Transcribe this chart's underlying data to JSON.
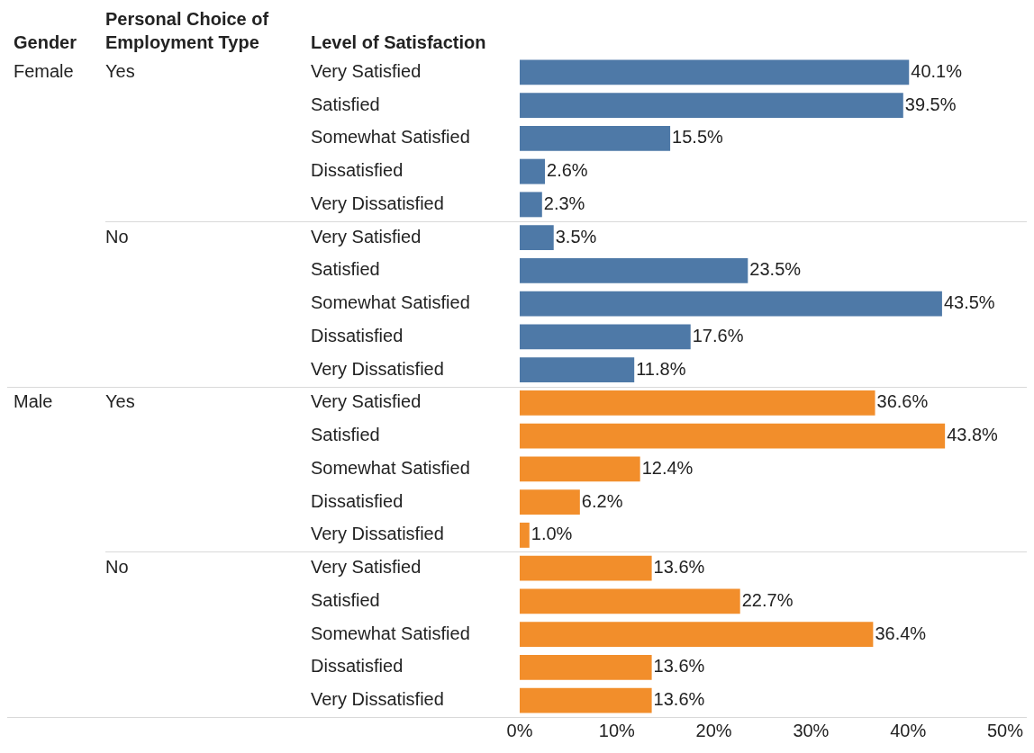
{
  "chart_data": {
    "type": "bar",
    "orientation": "horizontal",
    "legend_title": "Gender",
    "ylabel": "Level of Satisfaction",
    "annotations": [
      "Personal Choice of Employment Type",
      "Female",
      "Yes",
      "No",
      "Male",
      "Yes",
      "No"
    ],
    "grid": "y",
    "categories": [
      "Very Satisfied",
      "Satisfied",
      "Somewhat Satisfied",
      "Dissatisfied",
      "Very Dissatisfied",
      "Very Satisfied",
      "Satisfied",
      "Somewhat Satisfied",
      "Dissatisfied",
      "Very Dissatisfied",
      "Very Satisfied",
      "Satisfied",
      "Somewhat Satisfied",
      "Dissatisfied",
      "Very Dissatisfied",
      "Very Satisfied",
      "Satisfied",
      "Somewhat Satisfied",
      "Dissatisfied",
      "Very Dissatisfied"
    ],
    "series": [
      {
        "color": "#4e79a7",
        "values": [
          40.1,
          39.5,
          15.5,
          2.6,
          2.3,
          3.5,
          23.5,
          43.5,
          17.6,
          11.8,
          null,
          null,
          null,
          null,
          null,
          null,
          null,
          null,
          null,
          null
        ],
        "value_labels": [
          "40.1%",
          "39.5%",
          "15.5%",
          "2.6%",
          "2.3%",
          "3.5%",
          "23.5%",
          "43.5%",
          "17.6%",
          "11.8%",
          null,
          null,
          null,
          null,
          null,
          null,
          null,
          null,
          null,
          null
        ]
      },
      {
        "color": "#f28e2b",
        "values": [
          null,
          null,
          null,
          null,
          null,
          null,
          null,
          null,
          null,
          null,
          36.6,
          43.8,
          12.4,
          6.2,
          1.0,
          13.6,
          22.7,
          36.4,
          13.6,
          13.6
        ],
        "value_labels": [
          null,
          null,
          null,
          null,
          null,
          null,
          null,
          null,
          null,
          null,
          "36.6%",
          "43.8%",
          "12.4%",
          "6.2%",
          "1.0%",
          "13.6%",
          "22.7%",
          "36.4%",
          "13.6%",
          "13.6%"
        ]
      }
    ],
    "xlim": [
      0,
      50
    ],
    "xticks": [
      {
        "value": 0,
        "label": "0%"
      },
      {
        "value": 10,
        "label": "10%"
      },
      {
        "value": 20,
        "label": "20%"
      },
      {
        "value": 30,
        "label": "30%"
      },
      {
        "value": 40,
        "label": "40%"
      },
      {
        "value": 50,
        "label": "50%"
      }
    ]
  }
}
